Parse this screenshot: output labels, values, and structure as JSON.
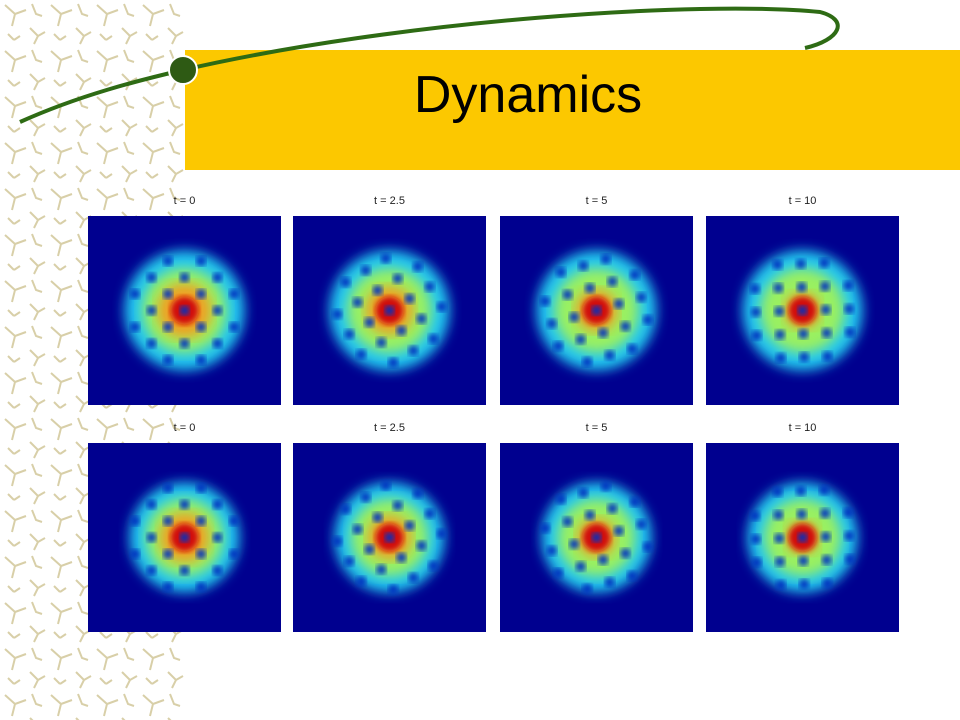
{
  "title": "Dynamics",
  "panels": [
    [
      "t = 0",
      "t = 2.5",
      "t = 5",
      "t = 10"
    ],
    [
      "t = 0",
      "t = 2.5",
      "t = 5",
      "t = 10"
    ]
  ]
}
